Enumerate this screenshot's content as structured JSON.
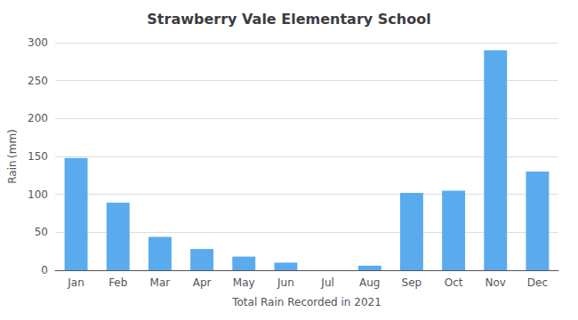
{
  "chart_data": {
    "type": "bar",
    "title": "Strawberry Vale Elementary School",
    "xlabel": "Total Rain Recorded in 2021",
    "ylabel": "Rain (mm)",
    "categories": [
      "Jan",
      "Feb",
      "Mar",
      "Apr",
      "May",
      "Jun",
      "Jul",
      "Aug",
      "Sep",
      "Oct",
      "Nov",
      "Dec"
    ],
    "values": [
      148,
      89,
      44,
      28,
      18,
      10,
      0,
      6,
      102,
      105,
      290,
      130
    ],
    "color": "#5aabee",
    "ylim": [
      0,
      300
    ],
    "yticks": [
      0,
      50,
      100,
      150,
      200,
      250,
      300
    ],
    "grid": true
  }
}
